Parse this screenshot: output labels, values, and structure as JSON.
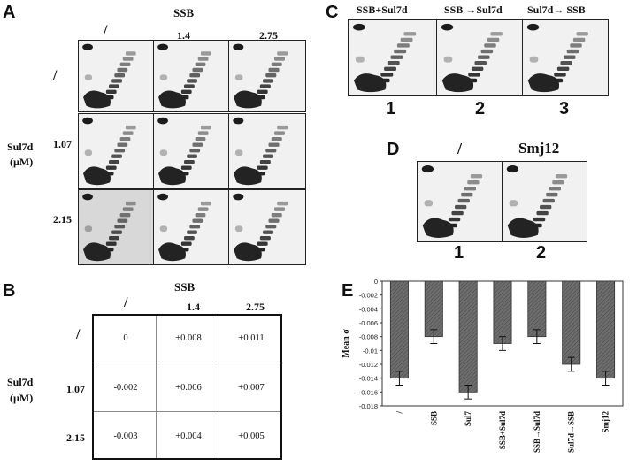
{
  "panel_a": {
    "letter": "A",
    "ssb_title": "SSB",
    "col_labels": [
      "/",
      "1.4",
      "2.75"
    ],
    "row_labels": [
      "/",
      "1.07",
      "2.15"
    ],
    "sul7d_label": "Sul7d",
    "unit_label": "(µM)"
  },
  "panel_b": {
    "letter": "B",
    "ssb_title": "SSB",
    "col_labels": [
      "/",
      "1.4",
      "2.75"
    ],
    "row_labels": [
      "/",
      "1.07",
      "2.15"
    ],
    "sul7d_label": "Sul7d",
    "unit_label": "(µM)",
    "rows": [
      [
        "0",
        "+0.008",
        "+0.011"
      ],
      [
        "-0.002",
        "+0.006",
        "+0.007"
      ],
      [
        "-0.003",
        "+0.004",
        "+0.005"
      ]
    ]
  },
  "panel_c": {
    "letter": "C",
    "col_labels": [
      "SSB+Sul7d",
      "SSB →Sul7d",
      "Sul7d→ SSB"
    ],
    "lane_numbers": [
      "1",
      "2",
      "3"
    ]
  },
  "panel_d": {
    "letter": "D",
    "col_labels": [
      "/",
      "Smj12"
    ],
    "lane_numbers": [
      "1",
      "2"
    ]
  },
  "panel_e": {
    "letter": "E"
  },
  "chart_data": {
    "type": "bar",
    "title": "",
    "xlabel": "",
    "ylabel": "Mean σ",
    "categories": [
      "/",
      "SSB",
      "Sul7",
      "SSB+Sul7d",
      "SSB→Sul7d",
      "Sul7d→SSB",
      "Smj12"
    ],
    "values": [
      -0.014,
      -0.008,
      -0.016,
      -0.009,
      -0.008,
      -0.012,
      -0.014
    ],
    "errors": [
      0.001,
      0.001,
      0.001,
      0.001,
      0.001,
      0.001,
      0.001
    ],
    "ylim": [
      -0.018,
      0
    ],
    "yticks": [
      "0",
      "-0.002",
      "-0.004",
      "-0.006",
      "-0.008",
      "-0.01",
      "-0.012",
      "-0.014",
      "-0.016",
      "-0.018"
    ],
    "bar_color": "#6e6e6e",
    "grid": false
  }
}
